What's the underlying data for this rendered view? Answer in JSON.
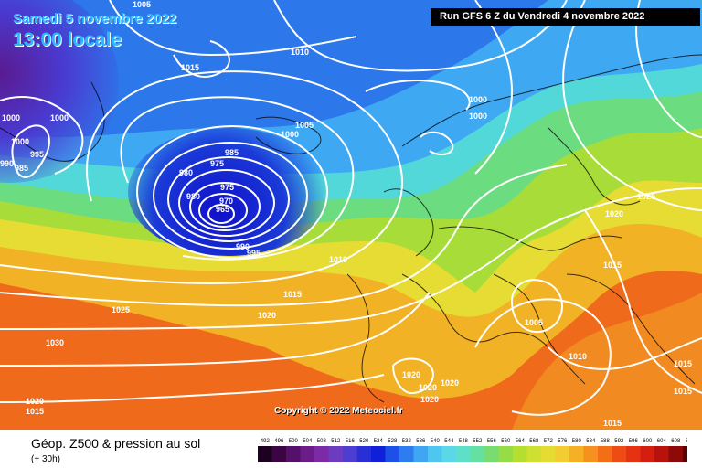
{
  "header": {
    "date": "Samedi 5 novembre 2022",
    "time": "13:00 locale",
    "run": "Run GFS 6 Z du Vendredi 4 novembre 2022"
  },
  "copyright": "Copyright © 2022 Meteociel.fr",
  "footer": {
    "title": "Géop. Z500 & pression au sol",
    "subtitle": "(+ 30h)"
  },
  "legend": {
    "labels": [
      "492",
      "496",
      "500",
      "504",
      "508",
      "512",
      "516",
      "520",
      "524",
      "528",
      "532",
      "536",
      "540",
      "544",
      "548",
      "552",
      "556",
      "560",
      "564",
      "568",
      "572",
      "576",
      "580",
      "584",
      "588",
      "592",
      "596",
      "600",
      "604",
      "608",
      "612"
    ],
    "colors": [
      "#1c0220",
      "#3a0540",
      "#55106a",
      "#6a1c88",
      "#7c2aa6",
      "#6b3cc0",
      "#4d3dd0",
      "#2a2ed6",
      "#1020d8",
      "#1c50e8",
      "#2f7cf0",
      "#3ea6f2",
      "#4ec6f0",
      "#5ad8e8",
      "#5ee0c8",
      "#64e0a0",
      "#78dc70",
      "#96dc46",
      "#b4de30",
      "#cfe030",
      "#e4dc30",
      "#f2cc30",
      "#f6b026",
      "#f6901e",
      "#f46e18",
      "#ee4c14",
      "#e43212",
      "#d41e10",
      "#b8120c",
      "#8c0a08",
      "#560404"
    ]
  },
  "isobars": [
    {
      "text": "1005",
      "color": "#ffffff"
    },
    {
      "text": "1010",
      "color": "#ffffff"
    },
    {
      "text": "1015",
      "color": "#ffffff"
    },
    {
      "text": "1000",
      "color": "#ffffff"
    },
    {
      "text": "1000",
      "color": "#ffffff"
    },
    {
      "text": "1000",
      "color": "#ffffff"
    },
    {
      "text": "1000",
      "color": "#ffffff"
    },
    {
      "text": "995",
      "color": "#ffffff"
    },
    {
      "text": "990",
      "color": "#ffffff"
    },
    {
      "text": "985",
      "color": "#ffffff"
    },
    {
      "text": "1005",
      "color": "#ffffff"
    },
    {
      "text": "1000",
      "color": "#ffffff"
    },
    {
      "text": "1000",
      "color": "#ffffff"
    },
    {
      "text": "985",
      "color": "#ffffff"
    },
    {
      "text": "975",
      "color": "#ffffff"
    },
    {
      "text": "980",
      "color": "#ffffff"
    },
    {
      "text": "980",
      "color": "#ffffff"
    },
    {
      "text": "975",
      "color": "#ffffff"
    },
    {
      "text": "970",
      "color": "#ffffff"
    },
    {
      "text": "965",
      "color": "#ffffff"
    },
    {
      "text": "990",
      "color": "#ffffff"
    },
    {
      "text": "995",
      "color": "#ffffff"
    },
    {
      "text": "1010",
      "color": "#ffffff"
    },
    {
      "text": "1015",
      "color": "#ffffff"
    },
    {
      "text": "1025",
      "color": "#ffffff"
    },
    {
      "text": "1020",
      "color": "#ffffff"
    },
    {
      "text": "1030",
      "color": "#ffffff"
    },
    {
      "text": "1020",
      "color": "#ffffff"
    },
    {
      "text": "1015",
      "color": "#ffffff"
    },
    {
      "text": "1020",
      "color": "#ffffff"
    },
    {
      "text": "1020",
      "color": "#ffffff"
    },
    {
      "text": "1020",
      "color": "#ffffff"
    },
    {
      "text": "1020",
      "color": "#ffffff"
    },
    {
      "text": "1005",
      "color": "#ffffff"
    },
    {
      "text": "1010",
      "color": "#ffffff"
    },
    {
      "text": "1025",
      "color": "#ffffff"
    },
    {
      "text": "1020",
      "color": "#ffffff"
    },
    {
      "text": "1015",
      "color": "#ffffff"
    },
    {
      "text": "1015",
      "color": "#ffffff"
    },
    {
      "text": "1015",
      "color": "#ffffff"
    },
    {
      "text": "1015",
      "color": "#ffffff"
    }
  ]
}
